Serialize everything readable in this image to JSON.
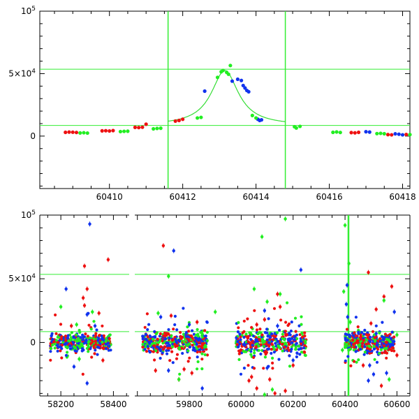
{
  "chart_data": [
    {
      "type": "scatter",
      "title": "",
      "xlabel": "",
      "ylabel": "",
      "xlim": [
        60408.1,
        60418.2
      ],
      "ylim": [
        -42000,
        100000
      ],
      "x_ticks": [
        60410,
        60412,
        60414,
        60416,
        60418
      ],
      "x_tick_labels": [
        "60410",
        "60412",
        "60414",
        "60416",
        "60418"
      ],
      "y_ticks": [
        0,
        50000,
        100000
      ],
      "y_tick_labels": [
        {
          "mantissa": "0",
          "base": "",
          "exp": ""
        },
        {
          "mantissa": "5×10",
          "base": "",
          "exp": "4"
        },
        {
          "mantissa": "10",
          "base": "",
          "exp": "5"
        }
      ],
      "reference_lines": {
        "horizontal": [
          53500,
          8500
        ],
        "vertical": [
          60411.6,
          60414.8
        ],
        "color": "#33ee33"
      },
      "model_curve": {
        "color": "#33dd33",
        "baseline": 8500,
        "peak_x": 60413.15,
        "peak_y": 52500,
        "x_range": [
          60411.6,
          60414.8
        ]
      },
      "series": [
        {
          "color": "#ee1111",
          "points": [
            [
              60408.8,
              3000
            ],
            [
              60408.9,
              3200
            ],
            [
              60409.0,
              3100
            ],
            [
              60409.1,
              2900
            ],
            [
              60409.8,
              4200
            ],
            [
              60409.9,
              4300
            ],
            [
              60410.0,
              4100
            ],
            [
              60410.1,
              4400
            ],
            [
              60410.7,
              7000
            ],
            [
              60410.8,
              6800
            ],
            [
              60410.9,
              7100
            ],
            [
              60411.0,
              9500
            ],
            [
              60411.8,
              12000
            ],
            [
              60411.9,
              12500
            ],
            [
              60412.0,
              13500
            ],
            [
              60416.6,
              2800
            ],
            [
              60416.7,
              2600
            ],
            [
              60416.8,
              3000
            ],
            [
              60417.6,
              1200
            ],
            [
              60417.7,
              1000
            ],
            [
              60418.1,
              1300
            ]
          ]
        },
        {
          "color": "#1133ee",
          "points": [
            [
              60412.6,
              36000
            ],
            [
              60413.35,
              44000
            ],
            [
              60413.5,
              45500
            ],
            [
              60413.6,
              44500
            ],
            [
              60413.65,
              40500
            ],
            [
              60413.7,
              38500
            ],
            [
              60413.75,
              36500
            ],
            [
              60413.8,
              35500
            ],
            [
              60414.05,
              13500
            ],
            [
              60414.1,
              12500
            ],
            [
              60414.15,
              13000
            ],
            [
              60417.0,
              3500
            ],
            [
              60417.1,
              3200
            ],
            [
              60417.8,
              1800
            ],
            [
              60417.9,
              1500
            ],
            [
              60418.0,
              1000
            ]
          ]
        },
        {
          "color": "#22ee22",
          "points": [
            [
              60409.2,
              2500
            ],
            [
              60409.3,
              2700
            ],
            [
              60409.4,
              2400
            ],
            [
              60410.3,
              3600
            ],
            [
              60410.4,
              3800
            ],
            [
              60410.5,
              3900
            ],
            [
              60411.2,
              5800
            ],
            [
              60411.3,
              6100
            ],
            [
              60411.4,
              6300
            ],
            [
              60412.4,
              14500
            ],
            [
              60412.5,
              15000
            ],
            [
              60412.95,
              47000
            ],
            [
              60413.05,
              51500
            ],
            [
              60413.1,
              52500
            ],
            [
              60413.2,
              51000
            ],
            [
              60413.25,
              49500
            ],
            [
              60413.3,
              56500
            ],
            [
              60413.9,
              16500
            ],
            [
              60414.0,
              14500
            ],
            [
              60415.05,
              7500
            ],
            [
              60415.1,
              6500
            ],
            [
              60415.2,
              7800
            ],
            [
              60416.1,
              3000
            ],
            [
              60416.2,
              3300
            ],
            [
              60416.3,
              2900
            ],
            [
              60417.3,
              2000
            ],
            [
              60417.4,
              2200
            ],
            [
              60417.5,
              1900
            ],
            [
              60418.2,
              1200
            ]
          ]
        }
      ]
    },
    {
      "type": "scatter",
      "title": "",
      "xlabel": "",
      "ylabel": "",
      "xlim": [
        58000,
        60650
      ],
      "ylim": [
        -42000,
        100000
      ],
      "broken_x_axis": {
        "gap": [
          58460,
          59590
        ],
        "segment_1": [
          58120,
          58460
        ],
        "segment_2": [
          59590,
          60650
        ]
      },
      "x_ticks": [
        58200,
        58400,
        59800,
        60000,
        60200,
        60400,
        60600
      ],
      "x_tick_labels": [
        "58200",
        "58400",
        "59800",
        "60000",
        "60200",
        "60400",
        "60600"
      ],
      "y_ticks": [
        0,
        50000,
        100000
      ],
      "y_tick_labels": [
        {
          "mantissa": "0",
          "base": "",
          "exp": ""
        },
        {
          "mantissa": "5×10",
          "base": "",
          "exp": "4"
        },
        {
          "mantissa": "10",
          "base": "",
          "exp": "5"
        }
      ],
      "reference_lines": {
        "horizontal": [
          53500,
          8500
        ],
        "vertical": [
          60413.2
        ],
        "color": "#33ee33"
      },
      "seasons": [
        {
          "x_range": [
            58160,
            58390
          ],
          "spread": 9000
        },
        {
          "x_range": [
            59620,
            59870
          ],
          "spread": 11000
        },
        {
          "x_range": [
            59980,
            60250
          ],
          "spread": 12000
        },
        {
          "x_range": [
            60400,
            60590
          ],
          "spread": 10000
        }
      ],
      "outliers": [
        {
          "color": "#1133ee",
          "points": [
            [
              58220,
              42000
            ],
            [
              58310,
              93000
            ],
            [
              58300,
              22000
            ],
            [
              58330,
              13000
            ],
            [
              58250,
              -19000
            ],
            [
              58300,
              -32000
            ],
            [
              59740,
              72000
            ],
            [
              59690,
              20000
            ],
            [
              59720,
              -22000
            ],
            [
              59850,
              -36000
            ],
            [
              59800,
              14000
            ],
            [
              60090,
              25000
            ],
            [
              60140,
              13000
            ],
            [
              60230,
              57000
            ],
            [
              60100,
              -20000
            ],
            [
              60200,
              -14000
            ],
            [
              60408,
              45000
            ],
            [
              60405,
              30000
            ],
            [
              60410,
              20000
            ],
            [
              60495,
              -18000
            ],
            [
              60510,
              -25000
            ],
            [
              60560,
              -24000
            ],
            [
              60590,
              24000
            ],
            [
              60490,
              -30000
            ],
            [
              60520,
              7000
            ]
          ]
        },
        {
          "color": "#ee1111",
          "points": [
            [
              58290,
              60000
            ],
            [
              58300,
              42000
            ],
            [
              58285,
              35000
            ],
            [
              58290,
              29000
            ],
            [
              58380,
              65000
            ],
            [
              58345,
              23000
            ],
            [
              58360,
              -14000
            ],
            [
              58240,
              13000
            ],
            [
              59700,
              76000
            ],
            [
              59670,
              -22000
            ],
            [
              59760,
              -29000
            ],
            [
              59810,
              -24000
            ],
            [
              59780,
              -21000
            ],
            [
              59730,
              21000
            ],
            [
              59830,
              16000
            ],
            [
              60040,
              -27000
            ],
            [
              60030,
              -30000
            ],
            [
              60060,
              -36000
            ],
            [
              60110,
              -29000
            ],
            [
              60130,
              -40000
            ],
            [
              60170,
              -38000
            ],
            [
              60200,
              -18000
            ],
            [
              60060,
              14000
            ],
            [
              60150,
              28000
            ],
            [
              60140,
              38000
            ],
            [
              60090,
              18000
            ],
            [
              60490,
              55000
            ],
            [
              60520,
              26000
            ],
            [
              60550,
              36000
            ],
            [
              60580,
              44000
            ],
            [
              60470,
              -18000
            ],
            [
              60540,
              -34000
            ],
            [
              60600,
              -10000
            ],
            [
              60500,
              15000
            ]
          ]
        },
        {
          "color": "#22ee22",
          "points": [
            [
              58200,
              28000
            ],
            [
              58320,
              24000
            ],
            [
              58270,
              -13000
            ],
            [
              58260,
              14000
            ],
            [
              59720,
              52000
            ],
            [
              59760,
              -29000
            ],
            [
              59900,
              24000
            ],
            [
              59680,
              23000
            ],
            [
              60080,
              83000
            ],
            [
              60170,
              97000
            ],
            [
              60150,
              38000
            ],
            [
              60100,
              32000
            ],
            [
              60050,
              42000
            ],
            [
              60120,
              -37000
            ],
            [
              60090,
              -41000
            ],
            [
              60400,
              92000
            ],
            [
              60415,
              62000
            ],
            [
              60395,
              40000
            ],
            [
              60420,
              16000
            ],
            [
              60550,
              33000
            ],
            [
              60570,
              -29000
            ],
            [
              60390,
              -6000
            ],
            [
              60600,
              6000
            ]
          ]
        }
      ]
    }
  ]
}
